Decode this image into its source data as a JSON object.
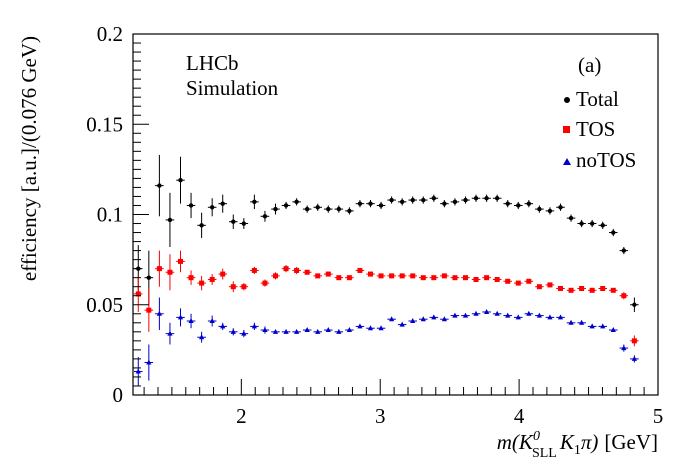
{
  "chart_data": {
    "type": "scatter",
    "title": "",
    "xlabel_parts": {
      "m": "m(K",
      "sup": "0",
      "sub": "SLL",
      "k1": "K",
      "k1sub": "1",
      "pi": "π)",
      "unit": "[GeV]"
    },
    "ylabel": "efficiency [a.u.]/(0.076 GeV)",
    "xlim": [
      1.22,
      5.0
    ],
    "ylim": [
      0,
      0.2
    ],
    "x_ticks": [
      2,
      3,
      4,
      5
    ],
    "x_tick_labels": [
      "2",
      "3",
      "4",
      "5"
    ],
    "y_ticks": [
      0,
      0.05,
      0.1,
      0.15,
      0.2
    ],
    "y_tick_labels": [
      "0",
      "0.05",
      "0.1",
      "0.15",
      "0.2"
    ],
    "annotations": {
      "experiment": "LHCb",
      "sub": "Simulation",
      "panel": "(a)"
    },
    "legend_position": "top-right",
    "x": [
      1.258,
      1.334,
      1.41,
      1.486,
      1.562,
      1.638,
      1.714,
      1.79,
      1.866,
      1.942,
      2.018,
      2.094,
      2.17,
      2.246,
      2.322,
      2.398,
      2.474,
      2.55,
      2.626,
      2.702,
      2.778,
      2.854,
      2.93,
      3.006,
      3.082,
      3.158,
      3.234,
      3.31,
      3.386,
      3.462,
      3.538,
      3.614,
      3.69,
      3.766,
      3.842,
      3.918,
      3.994,
      4.07,
      4.146,
      4.222,
      4.298,
      4.374,
      4.45,
      4.526,
      4.602,
      4.678,
      4.754,
      4.83
    ],
    "series": [
      {
        "name": "Total",
        "color": "#000000",
        "marker": "circle",
        "values": [
          0.07,
          0.065,
          0.116,
          0.097,
          0.119,
          0.105,
          0.094,
          0.104,
          0.106,
          0.096,
          0.095,
          0.107,
          0.099,
          0.103,
          0.105,
          0.107,
          0.103,
          0.104,
          0.103,
          0.103,
          0.102,
          0.106,
          0.106,
          0.105,
          0.108,
          0.107,
          0.108,
          0.108,
          0.109,
          0.106,
          0.107,
          0.108,
          0.109,
          0.109,
          0.109,
          0.106,
          0.105,
          0.106,
          0.103,
          0.102,
          0.104,
          0.098,
          0.095,
          0.095,
          0.094,
          0.09,
          0.08,
          0.05
        ],
        "errors": [
          0.013,
          0.015,
          0.017,
          0.015,
          0.013,
          0.007,
          0.007,
          0.005,
          0.005,
          0.004,
          0.003,
          0.004,
          0.003,
          0.003,
          0.002,
          0.002,
          0.002,
          0.002,
          0.002,
          0.002,
          0.002,
          0.002,
          0.002,
          0.002,
          0.002,
          0.002,
          0.002,
          0.002,
          0.002,
          0.002,
          0.002,
          0.002,
          0.002,
          0.002,
          0.002,
          0.002,
          0.002,
          0.002,
          0.002,
          0.002,
          0.002,
          0.002,
          0.002,
          0.002,
          0.002,
          0.002,
          0.002,
          0.004
        ]
      },
      {
        "name": "TOS",
        "color": "#ff0000",
        "marker": "square",
        "values": [
          0.056,
          0.047,
          0.07,
          0.068,
          0.074,
          0.065,
          0.062,
          0.064,
          0.067,
          0.06,
          0.06,
          0.069,
          0.062,
          0.066,
          0.07,
          0.069,
          0.068,
          0.066,
          0.067,
          0.065,
          0.065,
          0.069,
          0.067,
          0.066,
          0.066,
          0.066,
          0.066,
          0.065,
          0.065,
          0.066,
          0.065,
          0.065,
          0.064,
          0.065,
          0.064,
          0.063,
          0.062,
          0.063,
          0.06,
          0.061,
          0.059,
          0.058,
          0.059,
          0.058,
          0.059,
          0.058,
          0.055,
          0.03
        ],
        "errors": [
          0.01,
          0.012,
          0.01,
          0.01,
          0.006,
          0.004,
          0.004,
          0.003,
          0.003,
          0.003,
          0.002,
          0.002,
          0.002,
          0.002,
          0.002,
          0.002,
          0.001,
          0.001,
          0.001,
          0.001,
          0.001,
          0.001,
          0.001,
          0.001,
          0.001,
          0.001,
          0.001,
          0.001,
          0.001,
          0.001,
          0.001,
          0.001,
          0.001,
          0.001,
          0.001,
          0.001,
          0.001,
          0.001,
          0.001,
          0.001,
          0.001,
          0.001,
          0.001,
          0.001,
          0.001,
          0.001,
          0.002,
          0.003
        ]
      },
      {
        "name": "noTOS",
        "color": "#0000cc",
        "marker": "triangle",
        "values": [
          0.013,
          0.018,
          0.045,
          0.034,
          0.043,
          0.041,
          0.032,
          0.041,
          0.038,
          0.035,
          0.034,
          0.038,
          0.036,
          0.035,
          0.035,
          0.035,
          0.036,
          0.035,
          0.036,
          0.035,
          0.036,
          0.038,
          0.037,
          0.037,
          0.042,
          0.039,
          0.041,
          0.042,
          0.043,
          0.042,
          0.044,
          0.044,
          0.045,
          0.046,
          0.045,
          0.044,
          0.043,
          0.045,
          0.044,
          0.043,
          0.043,
          0.04,
          0.04,
          0.038,
          0.038,
          0.036,
          0.026,
          0.02
        ],
        "errors": [
          0.008,
          0.01,
          0.009,
          0.006,
          0.005,
          0.004,
          0.003,
          0.003,
          0.002,
          0.002,
          0.002,
          0.002,
          0.002,
          0.001,
          0.001,
          0.001,
          0.001,
          0.001,
          0.001,
          0.001,
          0.001,
          0.001,
          0.001,
          0.001,
          0.001,
          0.001,
          0.001,
          0.001,
          0.001,
          0.001,
          0.001,
          0.001,
          0.001,
          0.001,
          0.001,
          0.001,
          0.001,
          0.001,
          0.001,
          0.001,
          0.001,
          0.001,
          0.001,
          0.001,
          0.001,
          0.001,
          0.002,
          0.002
        ]
      }
    ]
  }
}
